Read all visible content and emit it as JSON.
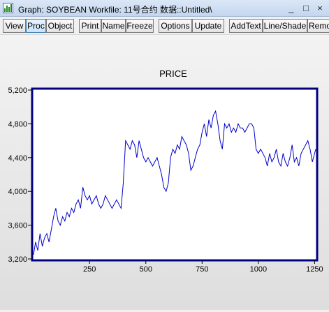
{
  "window": {
    "title": "Graph: SOYBEAN   Workfile: 11号合约 数据::Untitled\\",
    "buttons": [
      "_",
      "□",
      "×"
    ]
  },
  "toolbar": [
    {
      "label": "View",
      "name": "view-button",
      "active": false
    },
    {
      "label": "Proc",
      "name": "proc-button",
      "active": true
    },
    {
      "label": "Object",
      "name": "object-button",
      "active": false
    },
    {
      "label": "Print",
      "name": "print-button",
      "active": false
    },
    {
      "label": "Name",
      "name": "name-button",
      "active": false
    },
    {
      "label": "Freeze",
      "name": "freeze-button",
      "active": false
    },
    {
      "label": "Options",
      "name": "options-button",
      "active": false
    },
    {
      "label": "Update",
      "name": "update-button",
      "active": false
    },
    {
      "label": "AddText",
      "name": "addtext-button",
      "active": false
    },
    {
      "label": "Line/Shade",
      "name": "lineshade-button",
      "active": false
    },
    {
      "label": "Remo",
      "name": "remove-button",
      "active": false
    }
  ],
  "colors": {
    "frame": "#000080",
    "line": "#0000cc",
    "titlebar": "#c4d6ee"
  },
  "chart_data": {
    "type": "line",
    "title": "PRICE",
    "xlabel": "",
    "ylabel": "",
    "xlim": [
      1,
      1255
    ],
    "ylim": [
      3200,
      5200
    ],
    "xticks": [
      "250",
      "500",
      "750",
      "1000",
      "1250"
    ],
    "yticks": [
      "3,200",
      "3,600",
      "4,000",
      "4,400",
      "4,800",
      "5,200"
    ],
    "series": [
      {
        "x": [
          1,
          10,
          20,
          30,
          40,
          50,
          60,
          70,
          80,
          90,
          100,
          110,
          120,
          130,
          140,
          150,
          160,
          170,
          180,
          190,
          200,
          210,
          220,
          230,
          240,
          250,
          260,
          270,
          280,
          290,
          300,
          310,
          320,
          330,
          340,
          350,
          360,
          370,
          380,
          390,
          400,
          410,
          420,
          430,
          440,
          450,
          460,
          470,
          480,
          490,
          500,
          510,
          520,
          530,
          540,
          550,
          560,
          570,
          580,
          590,
          600,
          610,
          620,
          630,
          640,
          650,
          660,
          670,
          680,
          690,
          700,
          710,
          720,
          730,
          740,
          750,
          760,
          770,
          780,
          790,
          800,
          810,
          820,
          830,
          840,
          850,
          860,
          870,
          880,
          890,
          900,
          910,
          920,
          930,
          940,
          950,
          960,
          970,
          980,
          990,
          1000,
          1010,
          1020,
          1030,
          1040,
          1050,
          1060,
          1070,
          1080,
          1090,
          1100,
          1110,
          1120,
          1130,
          1140,
          1150,
          1160,
          1170,
          1180,
          1190,
          1200,
          1210,
          1220,
          1230,
          1240,
          1250,
          1255
        ],
        "y": [
          3250,
          3400,
          3300,
          3500,
          3350,
          3450,
          3500,
          3400,
          3550,
          3700,
          3800,
          3650,
          3600,
          3700,
          3650,
          3750,
          3700,
          3800,
          3750,
          3850,
          3900,
          3800,
          4050,
          3950,
          3900,
          3950,
          3850,
          3900,
          3950,
          3850,
          3800,
          3850,
          3950,
          3900,
          3850,
          3800,
          3850,
          3900,
          3850,
          3800,
          4100,
          4600,
          4550,
          4500,
          4600,
          4550,
          4400,
          4600,
          4500,
          4400,
          4350,
          4400,
          4350,
          4300,
          4350,
          4400,
          4300,
          4200,
          4050,
          4000,
          4100,
          4400,
          4500,
          4450,
          4550,
          4500,
          4650,
          4600,
          4550,
          4450,
          4250,
          4300,
          4400,
          4500,
          4550,
          4700,
          4800,
          4650,
          4850,
          4750,
          4900,
          4950,
          4800,
          4600,
          4500,
          4800,
          4750,
          4800,
          4700,
          4750,
          4700,
          4800,
          4750,
          4750,
          4700,
          4750,
          4800,
          4800,
          4750,
          4500,
          4450,
          4500,
          4450,
          4400,
          4300,
          4450,
          4350,
          4400,
          4500,
          4350,
          4300,
          4450,
          4350,
          4300,
          4400,
          4550,
          4350,
          4400,
          4300,
          4450,
          4500,
          4550,
          4600,
          4500,
          4350,
          4450,
          4500
        ]
      }
    ]
  }
}
